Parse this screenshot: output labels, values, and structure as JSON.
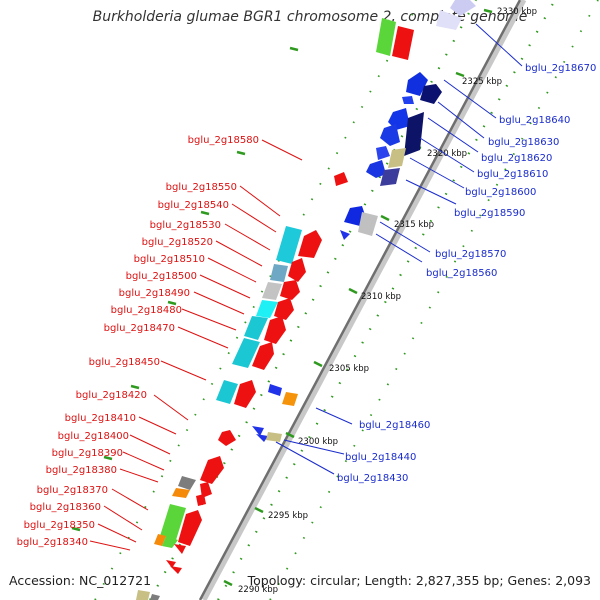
{
  "title": "Burkholderia glumae BGR1 chromosome 2, complete genome",
  "footer": {
    "accession_label": "Accession: NC_012721",
    "summary": "Topology: circular; Length: 2,827,355 bp; Genes: 2,093"
  },
  "colors": {
    "forward_label": "#dd1111",
    "reverse_label": "#1a2ccc",
    "backbone": "#8a8a8a",
    "tick": "#2f9a1f"
  },
  "ticks": [
    "2330 kbp",
    "2325 kbp",
    "2320 kbp",
    "2315 kbp",
    "2310 kbp",
    "2305 kbp",
    "2300 kbp",
    "2295 kbp",
    "2290 kbp"
  ],
  "forward_genes": [
    {
      "label": "bglu_2g18580"
    },
    {
      "label": "bglu_2g18550"
    },
    {
      "label": "bglu_2g18540"
    },
    {
      "label": "bglu_2g18530"
    },
    {
      "label": "bglu_2g18520"
    },
    {
      "label": "bglu_2g18510"
    },
    {
      "label": "bglu_2g18500"
    },
    {
      "label": "bglu_2g18490"
    },
    {
      "label": "bglu_2g18480"
    },
    {
      "label": "bglu_2g18470"
    },
    {
      "label": "bglu_2g18450"
    },
    {
      "label": "bglu_2g18420"
    },
    {
      "label": "bglu_2g18410"
    },
    {
      "label": "bglu_2g18400"
    },
    {
      "label": "bglu_2g18390"
    },
    {
      "label": "bglu_2g18380"
    },
    {
      "label": "bglu_2g18370"
    },
    {
      "label": "bglu_2g18360"
    },
    {
      "label": "bglu_2g18350"
    },
    {
      "label": "bglu_2g18340"
    }
  ],
  "reverse_genes": [
    {
      "label": "bglu_2g18670"
    },
    {
      "label": "bglu_2g18640"
    },
    {
      "label": "bglu_2g18630"
    },
    {
      "label": "bglu_2g18620"
    },
    {
      "label": "bglu_2g18610"
    },
    {
      "label": "bglu_2g18600"
    },
    {
      "label": "bglu_2g18590"
    },
    {
      "label": "bglu_2g18570"
    },
    {
      "label": "bglu_2g18560"
    },
    {
      "label": "bglu_2g18460"
    },
    {
      "label": "bglu_2g18440"
    },
    {
      "label": "bglu_2g18430"
    }
  ]
}
